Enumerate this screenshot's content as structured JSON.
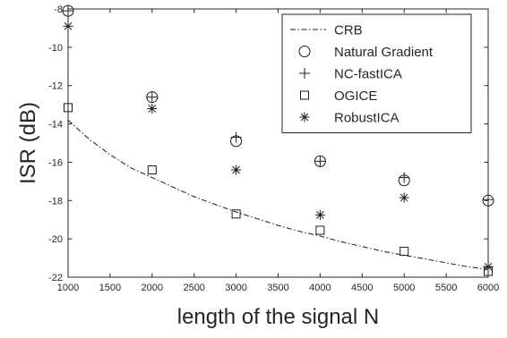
{
  "chart_data": {
    "type": "scatter",
    "xlabel": "length of the signal N",
    "ylabel": "ISR (dB)",
    "xlim": [
      1000,
      6000
    ],
    "ylim": [
      -22,
      -8
    ],
    "xticks": [
      1000,
      1500,
      2000,
      2500,
      3000,
      3500,
      4000,
      4500,
      5000,
      5500,
      6000
    ],
    "yticks": [
      -22,
      -20,
      -18,
      -16,
      -14,
      -12,
      -10,
      -8
    ],
    "xtick_labels": [
      "1000",
      "1500",
      "2000",
      "2500",
      "3000",
      "3500",
      "4000",
      "4500",
      "5000",
      "5500",
      "6000"
    ],
    "ytick_labels": [
      "-22",
      "-20",
      "-18",
      "-16",
      "-14",
      "-12",
      "-10",
      "-8"
    ],
    "grid": false,
    "legend_position": "top-right",
    "series": [
      {
        "name": "CRB",
        "style": "dash-dot line",
        "x": [
          1000,
          1250,
          1500,
          1750,
          2000,
          2250,
          2500,
          2750,
          3000,
          3250,
          3500,
          3750,
          4000,
          4250,
          4500,
          4750,
          5000,
          5250,
          5500,
          5750,
          6000
        ],
        "y": [
          -13.8,
          -14.8,
          -15.6,
          -16.3,
          -16.8,
          -17.3,
          -17.8,
          -18.2,
          -18.6,
          -18.95,
          -19.3,
          -19.6,
          -19.85,
          -20.15,
          -20.4,
          -20.65,
          -20.85,
          -21.05,
          -21.25,
          -21.45,
          -21.6
        ]
      },
      {
        "name": "Natural Gradient",
        "marker": "circle",
        "x": [
          1000,
          2000,
          3000,
          4000,
          5000,
          6000
        ],
        "y": [
          -8.1,
          -12.6,
          -14.9,
          -15.95,
          -16.95,
          -18.0
        ]
      },
      {
        "name": "NC-fastICA",
        "marker": "plus",
        "x": [
          1000,
          2000,
          3000,
          4000,
          5000,
          6000
        ],
        "y": [
          -8.1,
          -12.6,
          -14.7,
          -15.95,
          -16.8,
          -17.95
        ]
      },
      {
        "name": "OGICE",
        "marker": "square",
        "x": [
          1000,
          2000,
          3000,
          4000,
          5000,
          6000
        ],
        "y": [
          -13.15,
          -16.4,
          -18.7,
          -19.55,
          -20.65,
          -21.7
        ]
      },
      {
        "name": "RobustICA",
        "marker": "asterisk",
        "x": [
          1000,
          2000,
          3000,
          4000,
          5000,
          6000
        ],
        "y": [
          -8.9,
          -13.2,
          -16.4,
          -18.75,
          -17.85,
          -21.45
        ]
      }
    ]
  }
}
